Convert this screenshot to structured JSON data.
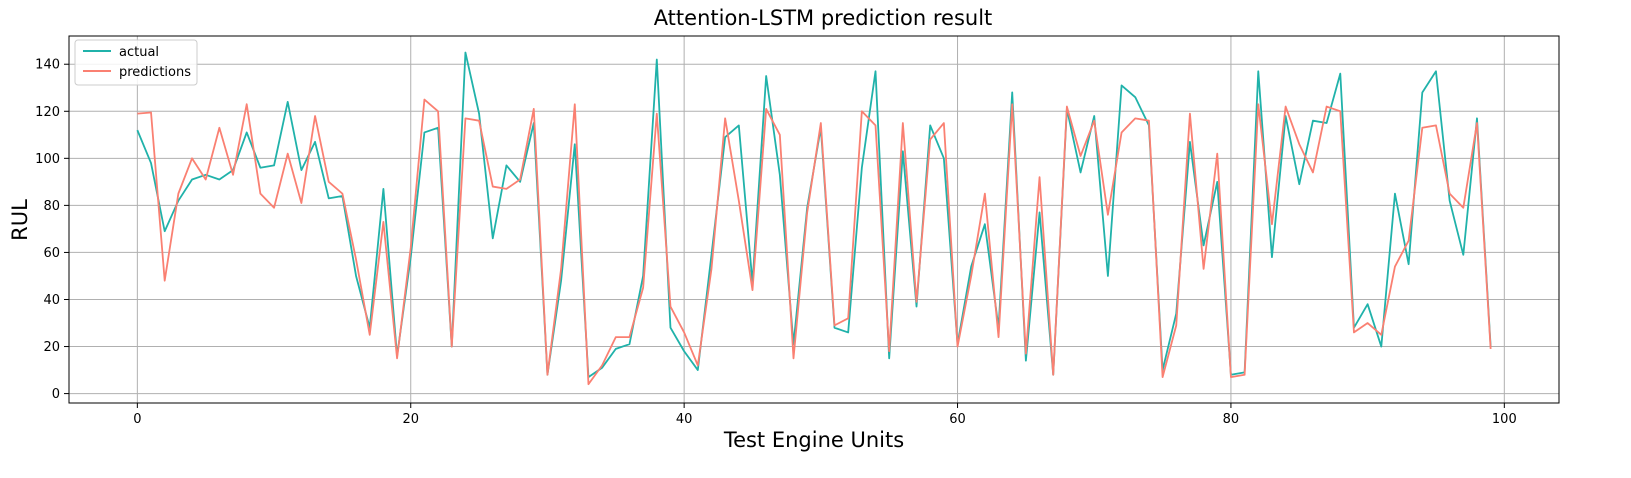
{
  "chart_data": {
    "type": "line",
    "title": "Attention-LSTM prediction result",
    "xlabel": "Test Engine Units",
    "ylabel": "RUL",
    "xlim": [
      -5,
      104
    ],
    "ylim": [
      -4,
      152
    ],
    "xticks": [
      0,
      20,
      40,
      60,
      80,
      100
    ],
    "yticks": [
      0,
      20,
      40,
      60,
      80,
      100,
      120,
      140
    ],
    "grid": true,
    "legend_position": "top-left",
    "series": [
      {
        "name": "actual",
        "color": "#20b2aa",
        "values": [
          112,
          98,
          69,
          82,
          91,
          93,
          91,
          95,
          111,
          96,
          97,
          124,
          95,
          107,
          83,
          84,
          50,
          28,
          87,
          16,
          58,
          111,
          113,
          20,
          145,
          119,
          66,
          97,
          90,
          115,
          8,
          48,
          106,
          7,
          11,
          19,
          21,
          50,
          142,
          28,
          18,
          10,
          59,
          109,
          114,
          47,
          135,
          93,
          21,
          79,
          113,
          28,
          26,
          96,
          137,
          15,
          103,
          37,
          114,
          100,
          21,
          54,
          72,
          28,
          128,
          14,
          77,
          8,
          121,
          94,
          118,
          50,
          131,
          126,
          114,
          10,
          34,
          107,
          63,
          90,
          8,
          9,
          137,
          58,
          118,
          89,
          116,
          115,
          136,
          28,
          38,
          20,
          85,
          55,
          128,
          137,
          82,
          59,
          117,
          20
        ]
      },
      {
        "name": "predictions",
        "color": "#fa8072",
        "values": [
          119,
          119.5,
          48,
          85,
          100,
          91,
          113,
          93,
          123,
          85,
          79,
          102,
          81,
          118,
          90,
          85,
          57,
          25,
          73,
          15,
          62,
          125,
          120,
          20,
          117,
          116,
          88,
          87,
          91,
          121,
          8,
          53,
          123,
          4,
          12,
          24,
          24,
          45,
          119,
          37,
          26,
          12,
          53,
          117,
          82,
          44,
          121,
          110,
          15,
          77,
          115,
          29,
          32,
          120,
          114,
          18,
          115,
          39,
          108,
          115,
          20,
          50,
          85,
          24,
          123,
          17,
          92,
          8,
          122,
          101,
          116,
          76,
          111,
          117,
          116,
          7,
          29,
          119,
          53,
          102,
          7,
          8,
          123,
          72,
          122,
          106,
          94,
          122,
          120,
          26,
          30,
          25,
          54,
          65,
          113,
          114,
          85,
          79,
          115,
          19
        ]
      }
    ]
  }
}
